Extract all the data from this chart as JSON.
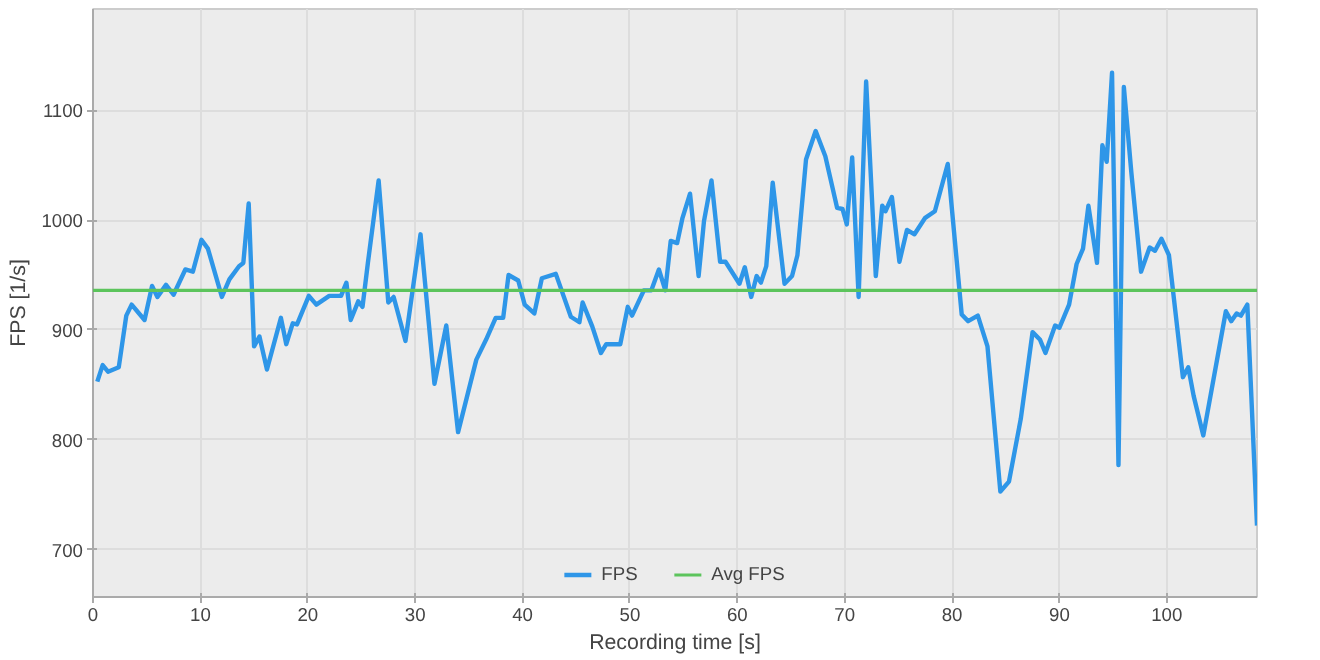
{
  "chart_data": {
    "type": "line",
    "xlabel": "Recording time [s]",
    "ylabel": "FPS [1/s]",
    "xlim": [
      0,
      108.4
    ],
    "ylim": [
      657,
      1192
    ],
    "xticks": [
      0,
      10,
      20,
      30,
      40,
      50,
      60,
      70,
      80,
      90,
      100
    ],
    "yticks": [
      700,
      800,
      900,
      1000,
      1100
    ],
    "grid": true,
    "legend": "bottom",
    "line_style": "solid",
    "series": [
      {
        "name": "FPS",
        "color": "#2e96e8",
        "x": [
          0.4,
          0.9,
          1.4,
          2.4,
          3.1,
          3.6,
          4.8,
          5.5,
          6,
          6.8,
          7.5,
          8.6,
          9.3,
          10.1,
          10.7,
          12,
          12.7,
          13.6,
          14,
          14.5,
          15,
          15.5,
          16.2,
          17.5,
          18,
          18.6,
          19,
          20.1,
          20.8,
          22,
          23.1,
          23.6,
          24,
          24.7,
          25.1,
          25.6,
          26.6,
          27.5,
          28,
          29.1,
          30.5,
          31.8,
          32.9,
          34,
          35.7,
          36.6,
          37.5,
          38.2,
          38.7,
          39.6,
          40.2,
          41.1,
          41.8,
          43.1,
          44.5,
          45.3,
          45.6,
          46.5,
          47.3,
          47.8,
          49.1,
          49.8,
          50.2,
          51.3,
          52,
          52.7,
          53.3,
          53.8,
          54.4,
          54.9,
          55.6,
          56.4,
          56.9,
          57.6,
          58.4,
          58.9,
          60.2,
          60.7,
          61.3,
          61.8,
          62.2,
          62.7,
          63.3,
          64.4,
          65.1,
          65.6,
          66.4,
          67.3,
          68.2,
          69.3,
          69.8,
          70.2,
          70.7,
          71.3,
          72,
          72.9,
          73.5,
          73.8,
          74.4,
          75.1,
          75.8,
          76.5,
          77.5,
          78.4,
          79.6,
          80.9,
          81.5,
          82.4,
          83.3,
          84.5,
          85.3,
          86.4,
          87.5,
          88.2,
          88.7,
          89.6,
          90,
          90.9,
          91.6,
          92.2,
          92.7,
          93.5,
          94,
          94.4,
          94.9,
          95.5,
          96,
          96.7,
          97.6,
          98.4,
          98.9,
          99.5,
          100.2,
          101.5,
          102,
          102.5,
          103.4,
          105.5,
          106,
          106.5,
          106.9,
          107.5,
          108.4
        ],
        "values": [
          853,
          868,
          862,
          866,
          913,
          923,
          909,
          940,
          930,
          941,
          932,
          955,
          953,
          982,
          974,
          930,
          946,
          958,
          961,
          1015,
          885,
          894,
          864,
          911,
          887,
          906,
          905,
          931,
          923,
          931,
          931,
          943,
          909,
          926,
          921,
          961,
          1036,
          925,
          930,
          890,
          987,
          851,
          904,
          807,
          873,
          891,
          911,
          911,
          950,
          945,
          923,
          915,
          947,
          951,
          912,
          907,
          925,
          903,
          879,
          887,
          887,
          921,
          913,
          936,
          936,
          955,
          936,
          981,
          979,
          1002,
          1024,
          949,
          999,
          1036,
          962,
          962,
          942,
          957,
          930,
          949,
          943,
          958,
          1034,
          942,
          949,
          968,
          1055,
          1081,
          1058,
          1011,
          1010,
          996,
          1057,
          930,
          1126,
          949,
          1013,
          1008,
          1021,
          962,
          991,
          987,
          1002,
          1008,
          1051,
          914,
          908,
          913,
          885,
          753,
          762,
          819,
          898,
          891,
          879,
          904,
          902,
          923,
          960,
          974,
          1013,
          961,
          1068,
          1053,
          1134,
          777,
          1121,
          1043,
          953,
          975,
          972,
          983,
          968,
          857,
          866,
          840,
          804,
          917,
          908,
          915,
          913,
          923,
          722
        ]
      }
    ],
    "ref_lines": [
      {
        "axis": "y",
        "value": 936,
        "label": "Avg FPS",
        "color": "#5cc45c",
        "line_style": "solid"
      }
    ]
  }
}
